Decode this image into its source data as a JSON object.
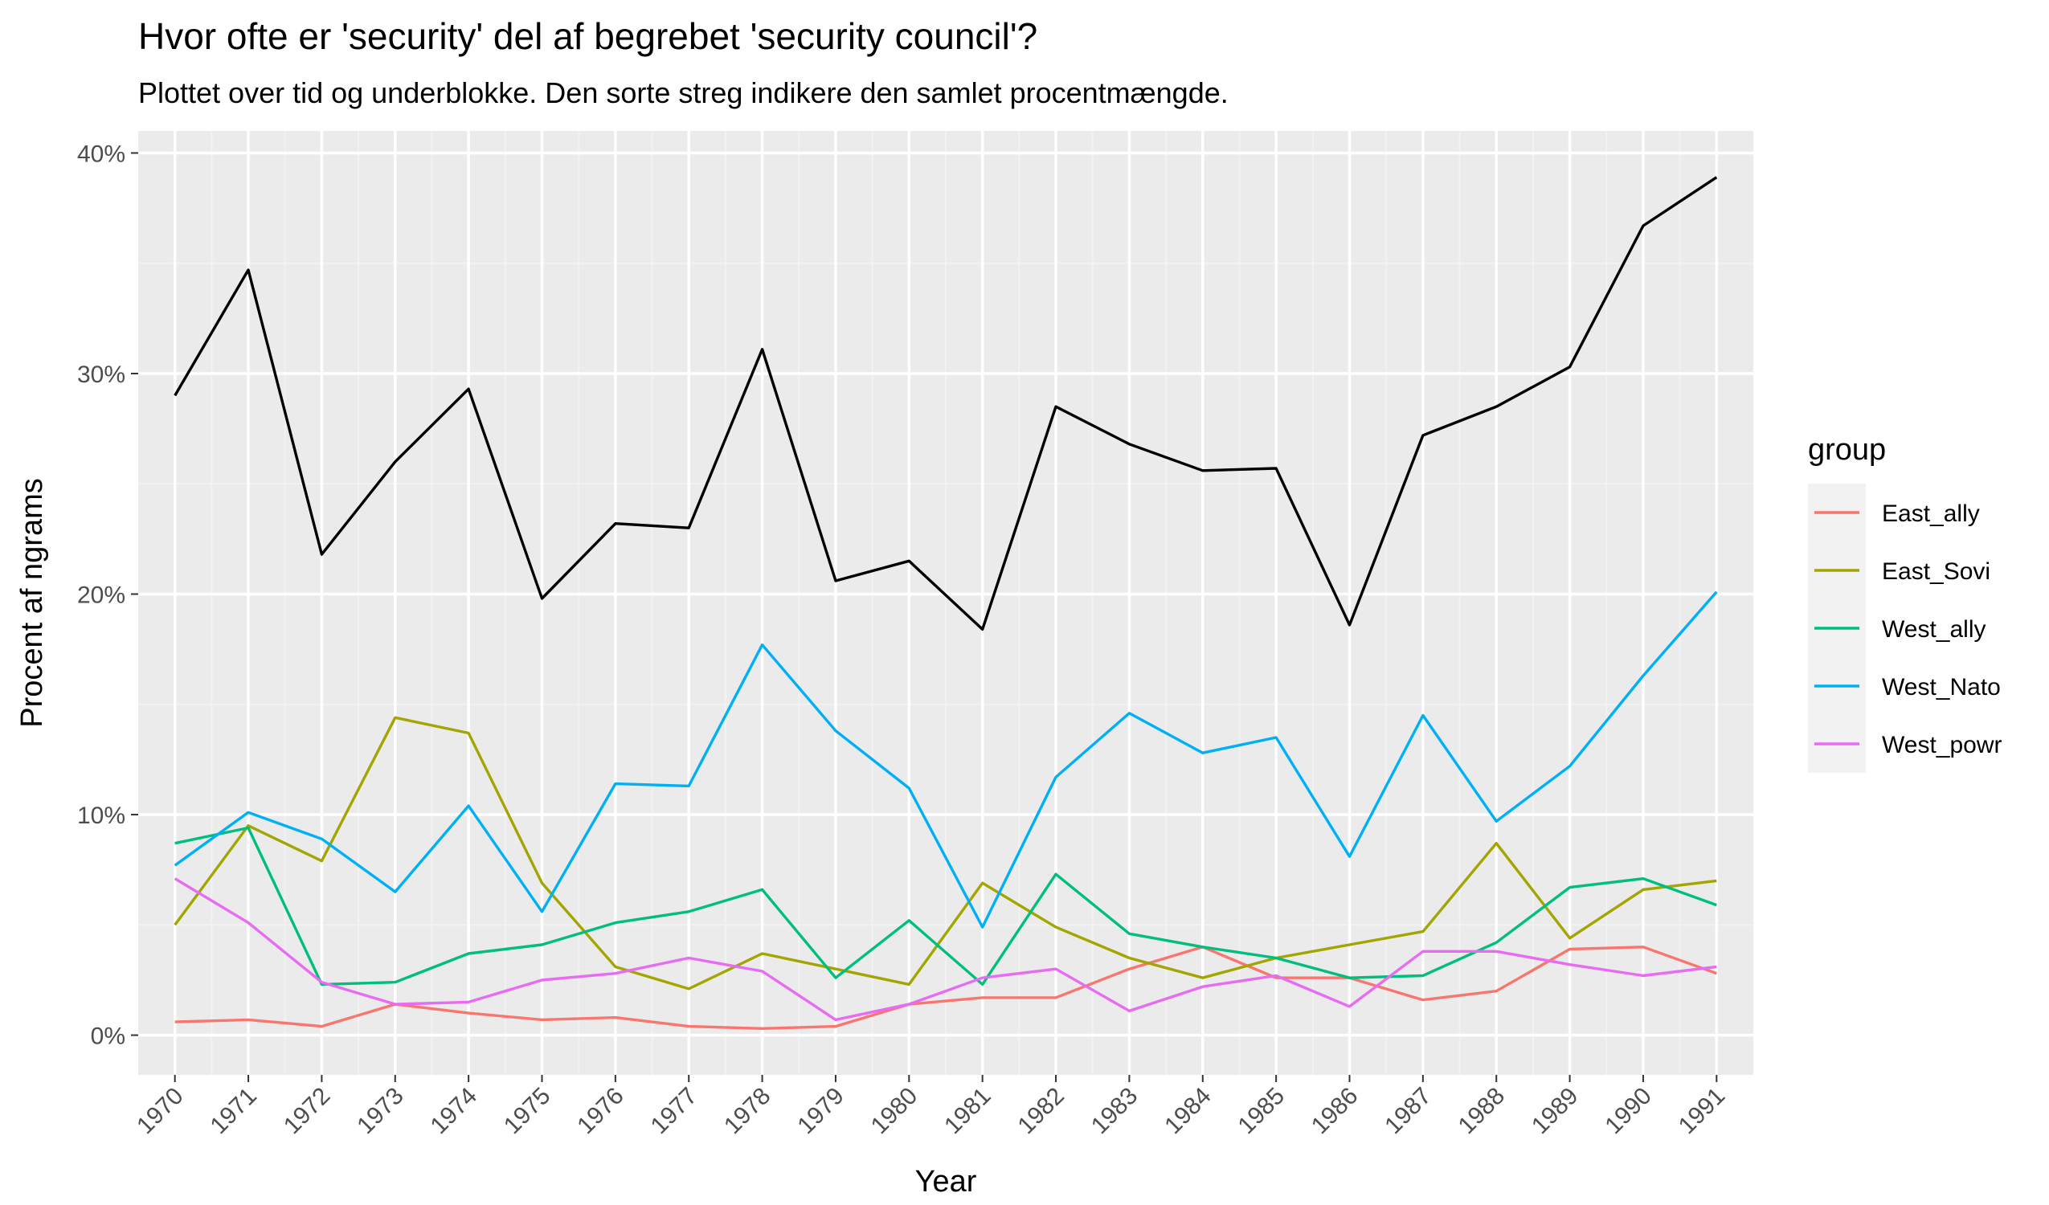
{
  "chart_data": {
    "type": "line",
    "title": "Hvor ofte er 'security' del af begrebet 'security council'?",
    "subtitle": "Plottet over tid og underblokke. Den sorte streg indikere den samlet procentmængde.",
    "xlabel": "Year",
    "ylabel": "Procent af ngrams",
    "x": [
      "1970",
      "1971",
      "1972",
      "1973",
      "1974",
      "1975",
      "1976",
      "1977",
      "1978",
      "1979",
      "1980",
      "1981",
      "1982",
      "1983",
      "1984",
      "1985",
      "1986",
      "1987",
      "1988",
      "1989",
      "1990",
      "1991"
    ],
    "ylim": [
      -1.8,
      41.0
    ],
    "yticks": [
      0,
      10,
      20,
      30,
      40
    ],
    "ytick_labels": [
      "0%",
      "10%",
      "20%",
      "30%",
      "40%"
    ],
    "grid": true,
    "legend_title": "group",
    "legend_position": "right",
    "total": {
      "color": "#000000",
      "values": [
        29.0,
        34.7,
        21.8,
        26.0,
        29.3,
        19.8,
        23.2,
        23.0,
        31.1,
        20.6,
        21.5,
        18.4,
        28.5,
        26.8,
        25.6,
        25.7,
        18.6,
        27.2,
        28.5,
        30.3,
        36.7,
        38.9
      ]
    },
    "series": [
      {
        "name": "East_ally",
        "color": "#F8766D",
        "values": [
          0.6,
          0.7,
          0.4,
          1.4,
          1.0,
          0.7,
          0.8,
          0.4,
          0.3,
          0.4,
          1.4,
          1.7,
          1.7,
          3.0,
          4.0,
          2.6,
          2.6,
          1.6,
          2.0,
          3.9,
          4.0,
          2.8
        ]
      },
      {
        "name": "East_Sovi",
        "color": "#A3A500",
        "values": [
          5.0,
          9.5,
          7.9,
          14.4,
          13.7,
          6.9,
          3.1,
          2.1,
          3.7,
          3.0,
          2.3,
          6.9,
          4.9,
          3.5,
          2.6,
          3.5,
          4.1,
          4.7,
          8.7,
          4.4,
          6.6,
          7.0
        ]
      },
      {
        "name": "West_ally",
        "color": "#00BF7D",
        "values": [
          8.7,
          9.4,
          2.3,
          2.4,
          3.7,
          4.1,
          5.1,
          5.6,
          6.6,
          2.6,
          5.2,
          2.3,
          7.3,
          4.6,
          4.0,
          3.5,
          2.6,
          2.7,
          4.2,
          6.7,
          7.1,
          5.9
        ]
      },
      {
        "name": "West_Nato",
        "color": "#00B0F6",
        "values": [
          7.7,
          10.1,
          8.9,
          6.5,
          10.4,
          5.6,
          11.4,
          11.3,
          17.7,
          13.8,
          11.2,
          4.9,
          11.7,
          14.6,
          12.8,
          13.5,
          8.1,
          14.5,
          9.7,
          12.2,
          16.3,
          20.1
        ]
      },
      {
        "name": "West_powr",
        "color": "#E76BF3",
        "values": [
          7.1,
          5.1,
          2.4,
          1.4,
          1.5,
          2.5,
          2.8,
          3.5,
          2.9,
          0.7,
          1.4,
          2.6,
          3.0,
          1.1,
          2.2,
          2.7,
          1.3,
          3.8,
          3.8,
          3.2,
          2.7,
          3.1
        ]
      }
    ]
  }
}
